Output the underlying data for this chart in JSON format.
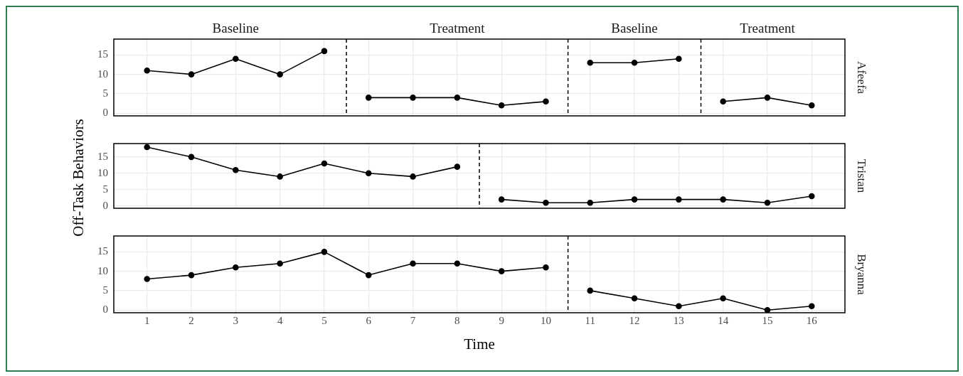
{
  "chart_data": [
    {
      "type": "line",
      "xlim": [
        0.25,
        16.75
      ],
      "ylim": [
        -0.7,
        19.1
      ],
      "xticks": [
        1,
        2,
        3,
        4,
        5,
        6,
        7,
        8,
        9,
        10,
        11,
        12,
        13,
        14,
        15,
        16
      ],
      "yticks": [
        0,
        5,
        10,
        15
      ],
      "grid": true,
      "legend": false,
      "tick_labels": "y",
      "marker": "circle",
      "series": [
        {
          "name": "Afeefa",
          "color": "#000000",
          "x": [
            1,
            2,
            3,
            4,
            5,
            6,
            7,
            8,
            9,
            10,
            11,
            12,
            13,
            14,
            15,
            16
          ],
          "values": [
            11,
            10,
            14,
            10,
            16,
            4,
            4,
            4,
            2,
            3,
            13,
            13,
            14,
            3,
            4,
            2
          ]
        }
      ],
      "ref_lines": [
        {
          "axis": "x",
          "value": 5.5,
          "line_style": "dashed",
          "color": "#000000"
        },
        {
          "axis": "x",
          "value": 10.5,
          "line_style": "dashed",
          "color": "#000000"
        },
        {
          "axis": "x",
          "value": 13.5,
          "line_style": "dashed",
          "color": "#000000"
        }
      ],
      "annotations": [
        "Baseline",
        "Treatment",
        "Baseline",
        "Treatment"
      ]
    },
    {
      "type": "line",
      "xlim": [
        0.25,
        16.75
      ],
      "ylim": [
        -0.7,
        19.1
      ],
      "xticks": [
        1,
        2,
        3,
        4,
        5,
        6,
        7,
        8,
        9,
        10,
        11,
        12,
        13,
        14,
        15,
        16
      ],
      "yticks": [
        0,
        5,
        10,
        15
      ],
      "grid": true,
      "legend": false,
      "tick_labels": "y",
      "marker": "circle",
      "ylabel": "Off-Task Behaviors",
      "series": [
        {
          "name": "Tristan",
          "color": "#000000",
          "x": [
            1,
            2,
            3,
            4,
            5,
            6,
            7,
            8,
            9,
            10,
            11,
            12,
            13,
            14,
            15,
            16
          ],
          "values": [
            18,
            15,
            11,
            9,
            13,
            10,
            9,
            12,
            2,
            1,
            1,
            2,
            2,
            2,
            1,
            3
          ]
        }
      ],
      "ref_lines": [
        {
          "axis": "x",
          "value": 8.5,
          "line_style": "dashed",
          "color": "#000000"
        }
      ]
    },
    {
      "type": "line",
      "xlim": [
        0.25,
        16.75
      ],
      "ylim": [
        -0.7,
        19.1
      ],
      "xticks": [
        1,
        2,
        3,
        4,
        5,
        6,
        7,
        8,
        9,
        10,
        11,
        12,
        13,
        14,
        15,
        16
      ],
      "yticks": [
        0,
        5,
        10,
        15
      ],
      "grid": true,
      "legend": false,
      "marker": "circle",
      "xlabel": "Time",
      "series": [
        {
          "name": "Bryanna",
          "color": "#000000",
          "x": [
            1,
            2,
            3,
            4,
            5,
            6,
            7,
            8,
            9,
            10,
            11,
            12,
            13,
            14,
            15,
            16
          ],
          "values": [
            8,
            9,
            11,
            12,
            15,
            9,
            12,
            12,
            10,
            11,
            5,
            3,
            1,
            3,
            0,
            1
          ]
        }
      ],
      "ref_lines": [
        {
          "axis": "x",
          "value": 10.5,
          "line_style": "dashed",
          "color": "#000000"
        }
      ]
    }
  ]
}
